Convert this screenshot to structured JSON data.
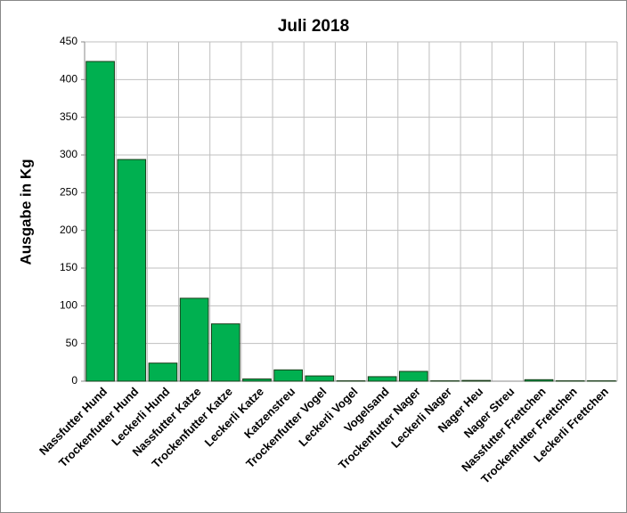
{
  "chart_data": {
    "type": "bar",
    "title": "Juli 2018",
    "y_label": "Ausgabe in Kg",
    "categories": [
      "Nassfutter Hund",
      "Trockenfutter Hund",
      "Leckerli Hund",
      "Nassfutter Katze",
      "Trockenfutter Katze",
      "Leckerli Katze",
      "Katzenstreu",
      "Trockenfutter Vogel",
      "Leckerli Vogel",
      "Vogelsand",
      "Trockenfutter Nager",
      "Leckerli Nager",
      "Nager Heu",
      "Nager Streu",
      "Nassfutter Frettchen",
      "Trockenfutter Frettchen",
      "Leckerli Frettchen"
    ],
    "values": [
      424,
      294,
      24,
      110,
      76,
      3,
      15,
      7,
      0.5,
      6,
      13,
      0.5,
      1,
      0,
      2,
      0.5,
      0.5
    ],
    "color": "#00b050",
    "ylim": [
      0,
      450
    ],
    "yticks": [
      0,
      50,
      100,
      150,
      200,
      250,
      300,
      350,
      400,
      450
    ],
    "grid": true
  }
}
